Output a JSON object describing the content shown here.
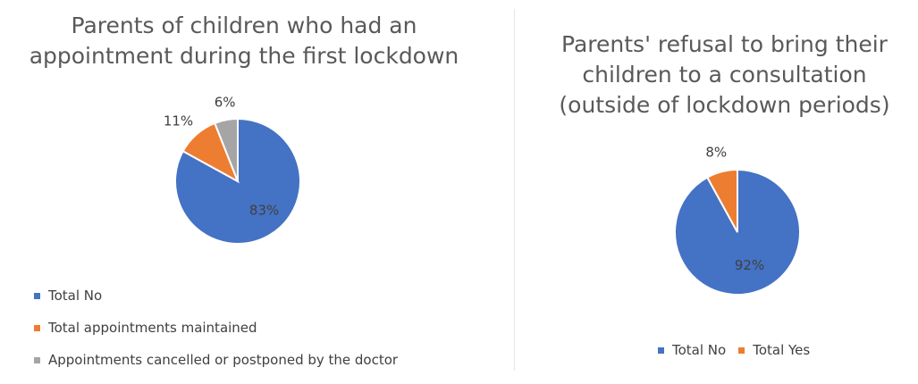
{
  "chart_data": [
    {
      "type": "pie",
      "title": "Parents of children who had an\nappointment during the first lockdown",
      "slices": [
        {
          "name": "Total No",
          "value": 83,
          "label": "83%",
          "color": "#4472c4"
        },
        {
          "name": "Total appointments maintained",
          "value": 11,
          "label": "11%",
          "color": "#ed7d31"
        },
        {
          "name": "Appointments cancelled or postponed by the doctor",
          "value": 6,
          "label": "6%",
          "color": "#a5a5a5"
        }
      ],
      "legend_position": "bottom-left"
    },
    {
      "type": "pie",
      "title": "Parents' refusal to bring their\nchildren to a consultation\n(outside of lockdown periods)",
      "slices": [
        {
          "name": "Total No",
          "value": 92,
          "label": "92%",
          "color": "#4472c4"
        },
        {
          "name": "Total Yes",
          "value": 8,
          "label": "8%",
          "color": "#ed7d31"
        }
      ],
      "legend_position": "bottom"
    }
  ]
}
